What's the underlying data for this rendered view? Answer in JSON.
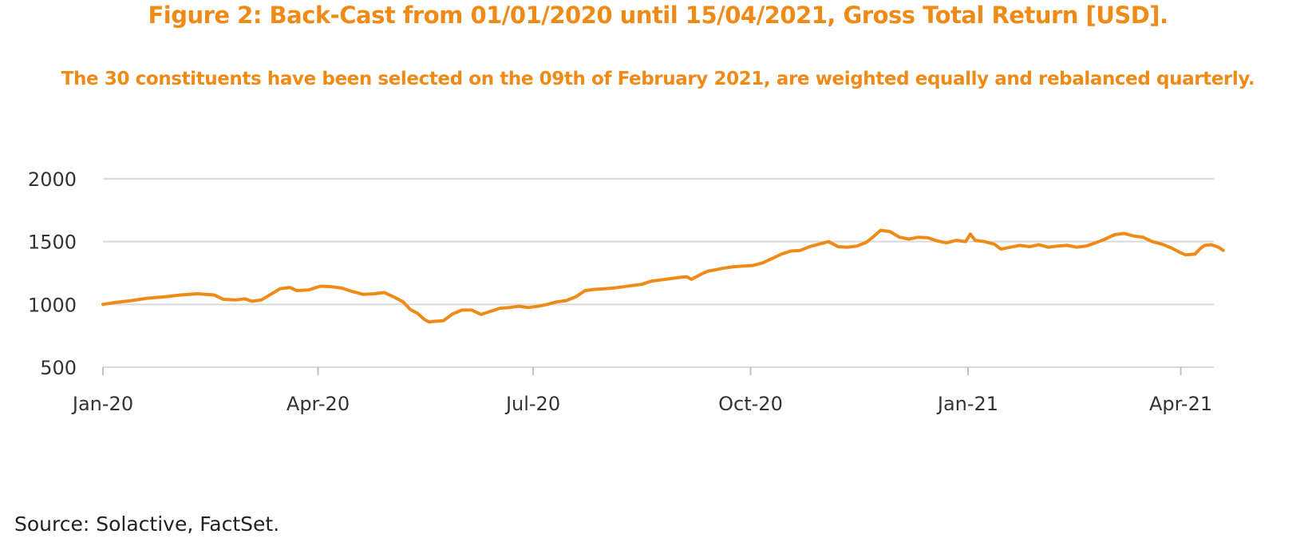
{
  "chart_data": {
    "type": "line",
    "title": "Figure 2: Back-Cast from 01/01/2020 until 15/04/2021, Gross Total Return [USD].",
    "subtitle": "The 30 constituents have been selected on the 09th of February 2021, are weighted equally and rebalanced quarterly.",
    "xlabel": "",
    "ylabel": "",
    "x_ticks": [
      "Jan-20",
      "Apr-20",
      "Jul-20",
      "Oct-20",
      "Jan-21",
      "Apr-21"
    ],
    "y_ticks": [
      500,
      1000,
      1500,
      2000
    ],
    "xlim": [
      "2020-01-01",
      "2021-04-15"
    ],
    "ylim": [
      500,
      2200
    ],
    "grid": true,
    "color": "#ef8a17",
    "series": [
      {
        "points": [
          [
            "2020-01-01",
            1000
          ],
          [
            "2020-01-06",
            1015
          ],
          [
            "2020-01-13",
            1030
          ],
          [
            "2020-01-20",
            1050
          ],
          [
            "2020-01-27",
            1060
          ],
          [
            "2020-02-03",
            1075
          ],
          [
            "2020-02-10",
            1085
          ],
          [
            "2020-02-17",
            1075
          ],
          [
            "2020-02-21",
            1040
          ],
          [
            "2020-02-26",
            1035
          ],
          [
            "2020-03-01",
            1045
          ],
          [
            "2020-03-04",
            1025
          ],
          [
            "2020-03-08",
            1035
          ],
          [
            "2020-03-12",
            1080
          ],
          [
            "2020-03-16",
            1125
          ],
          [
            "2020-03-20",
            1135
          ],
          [
            "2020-03-23",
            1110
          ],
          [
            "2020-03-28",
            1115
          ],
          [
            "2020-04-02",
            1145
          ],
          [
            "2020-04-07",
            1140
          ],
          [
            "2020-04-11",
            1130
          ],
          [
            "2020-04-16",
            1100
          ],
          [
            "2020-04-20",
            1080
          ],
          [
            "2020-04-25",
            1085
          ],
          [
            "2020-04-29",
            1095
          ],
          [
            "2020-05-03",
            1060
          ],
          [
            "2020-05-07",
            1020
          ],
          [
            "2020-05-10",
            960
          ],
          [
            "2020-05-13",
            930
          ],
          [
            "2020-05-16",
            880
          ],
          [
            "2020-05-18",
            860
          ],
          [
            "2020-05-20",
            865
          ],
          [
            "2020-05-24",
            870
          ],
          [
            "2020-05-28",
            925
          ],
          [
            "2020-06-01",
            955
          ],
          [
            "2020-06-05",
            955
          ],
          [
            "2020-06-09",
            920
          ],
          [
            "2020-06-13",
            945
          ],
          [
            "2020-06-17",
            970
          ],
          [
            "2020-06-21",
            975
          ],
          [
            "2020-06-25",
            985
          ],
          [
            "2020-06-29",
            975
          ],
          [
            "2020-07-03",
            985
          ],
          [
            "2020-07-07",
            1000
          ],
          [
            "2020-07-11",
            1020
          ],
          [
            "2020-07-15",
            1030
          ],
          [
            "2020-07-19",
            1060
          ],
          [
            "2020-07-23",
            1110
          ],
          [
            "2020-07-27",
            1120
          ],
          [
            "2020-07-31",
            1125
          ],
          [
            "2020-08-04",
            1130
          ],
          [
            "2020-08-08",
            1140
          ],
          [
            "2020-08-12",
            1150
          ],
          [
            "2020-08-16",
            1160
          ],
          [
            "2020-08-20",
            1185
          ],
          [
            "2020-08-24",
            1195
          ],
          [
            "2020-08-28",
            1205
          ],
          [
            "2020-09-01",
            1215
          ],
          [
            "2020-09-04",
            1220
          ],
          [
            "2020-09-06",
            1200
          ],
          [
            "2020-09-10",
            1240
          ],
          [
            "2020-09-13",
            1265
          ],
          [
            "2020-09-16",
            1275
          ],
          [
            "2020-09-20",
            1290
          ],
          [
            "2020-09-24",
            1300
          ],
          [
            "2020-09-28",
            1305
          ],
          [
            "2020-10-02",
            1310
          ],
          [
            "2020-10-06",
            1330
          ],
          [
            "2020-10-10",
            1365
          ],
          [
            "2020-10-14",
            1400
          ],
          [
            "2020-10-18",
            1425
          ],
          [
            "2020-10-22",
            1430
          ],
          [
            "2020-10-26",
            1460
          ],
          [
            "2020-10-30",
            1480
          ],
          [
            "2020-11-03",
            1500
          ],
          [
            "2020-11-07",
            1460
          ],
          [
            "2020-11-11",
            1455
          ],
          [
            "2020-11-15",
            1465
          ],
          [
            "2020-11-19",
            1495
          ],
          [
            "2020-11-22",
            1540
          ],
          [
            "2020-11-25",
            1590
          ],
          [
            "2020-11-29",
            1580
          ],
          [
            "2020-12-03",
            1535
          ],
          [
            "2020-12-07",
            1520
          ],
          [
            "2020-12-11",
            1535
          ],
          [
            "2020-12-15",
            1530
          ],
          [
            "2020-12-19",
            1505
          ],
          [
            "2020-12-23",
            1490
          ],
          [
            "2020-12-27",
            1510
          ],
          [
            "2020-12-31",
            1500
          ],
          [
            "2021-01-02",
            1560
          ],
          [
            "2021-01-04",
            1510
          ],
          [
            "2021-01-08",
            1500
          ],
          [
            "2021-01-12",
            1480
          ],
          [
            "2021-01-15",
            1440
          ],
          [
            "2021-01-19",
            1455
          ],
          [
            "2021-01-23",
            1470
          ],
          [
            "2021-01-27",
            1460
          ],
          [
            "2021-01-31",
            1475
          ],
          [
            "2021-02-04",
            1455
          ],
          [
            "2021-02-08",
            1465
          ],
          [
            "2021-02-12",
            1470
          ],
          [
            "2021-02-16",
            1455
          ],
          [
            "2021-02-20",
            1465
          ],
          [
            "2021-02-24",
            1490
          ],
          [
            "2021-02-28",
            1520
          ],
          [
            "2021-03-04",
            1555
          ],
          [
            "2021-03-08",
            1565
          ],
          [
            "2021-03-12",
            1545
          ],
          [
            "2021-03-16",
            1535
          ],
          [
            "2021-03-20",
            1500
          ],
          [
            "2021-03-24",
            1480
          ],
          [
            "2021-03-28",
            1450
          ],
          [
            "2021-03-31",
            1420
          ],
          [
            "2021-04-03",
            1395
          ],
          [
            "2021-04-07",
            1400
          ],
          [
            "2021-04-09",
            1440
          ],
          [
            "2021-04-11",
            1470
          ],
          [
            "2021-04-14",
            1475
          ],
          [
            "2021-04-17",
            1455
          ],
          [
            "2021-04-19",
            1430
          ]
        ]
      }
    ]
  },
  "source": "Source: Solactive, FactSet."
}
